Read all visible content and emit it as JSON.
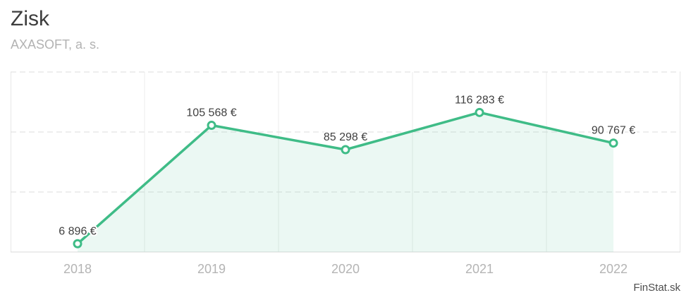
{
  "header": {
    "title": "Zisk",
    "subtitle": "AXASOFT, a. s."
  },
  "footer": {
    "brand": "FinStat.sk"
  },
  "chart_data": {
    "type": "area",
    "title": "Zisk",
    "subtitle": "AXASOFT, a. s.",
    "categories": [
      "2018",
      "2019",
      "2020",
      "2021",
      "2022"
    ],
    "series": [
      {
        "name": "Zisk",
        "values": [
          6896,
          105568,
          85298,
          116283,
          90767
        ]
      }
    ],
    "point_labels": [
      "6 896 €",
      "105 568 €",
      "85 298 €",
      "116 283 €",
      "90 767 €"
    ],
    "unit": "€",
    "xlabel": "",
    "ylabel": "",
    "ylim": [
      0,
      150000
    ],
    "grid_interval": 50000,
    "grid": "horizontal-dashed-with-vertical-band-separators",
    "legend": "none",
    "colors": {
      "line": "#3fbc87",
      "area_fill": "rgba(63,188,135,0.10)",
      "grid_dashed": "#dedede",
      "grid_vertical": "#ececec",
      "axis_line": "#d9d9d9",
      "data_label": "#3f3f3f",
      "x_tick_label": "#b4b4b4"
    }
  }
}
